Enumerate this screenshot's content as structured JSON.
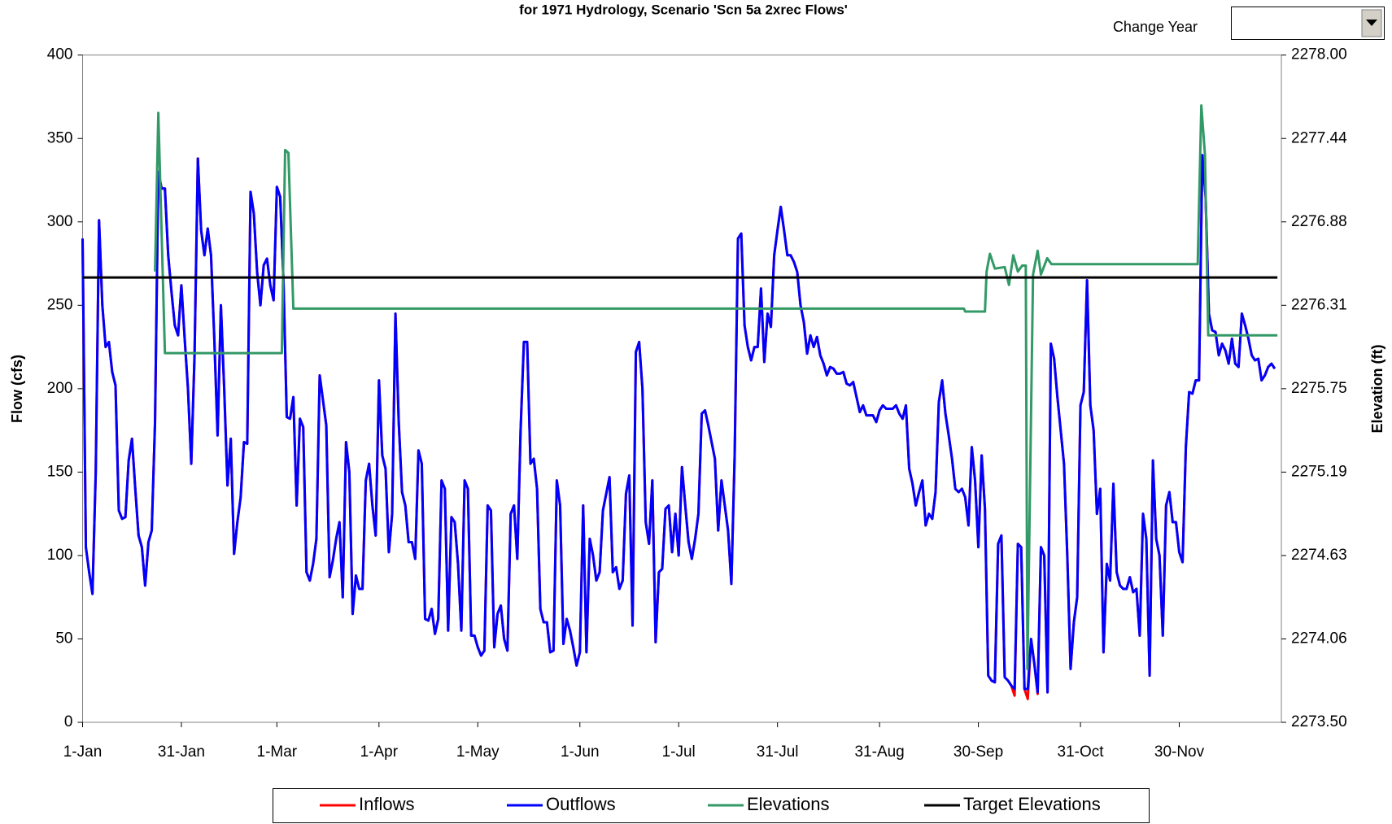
{
  "chart_data": {
    "type": "line",
    "title": "for 1971 Hydrology, Scenario 'Scn 5a 2xrec Flows'",
    "change_year_label": "Change Year",
    "ylabel": "Flow (cfs)",
    "y2label": "Elevation (ft)",
    "xlim": [
      0,
      364
    ],
    "xticks": [
      {
        "value": 0,
        "label": "1-Jan"
      },
      {
        "value": 30,
        "label": "31-Jan"
      },
      {
        "value": 59,
        "label": "1-Mar"
      },
      {
        "value": 90,
        "label": "1-Apr"
      },
      {
        "value": 120,
        "label": "1-May"
      },
      {
        "value": 151,
        "label": "1-Jun"
      },
      {
        "value": 181,
        "label": "1-Jul"
      },
      {
        "value": 211,
        "label": "31-Jul"
      },
      {
        "value": 242,
        "label": "31-Aug"
      },
      {
        "value": 272,
        "label": "30-Sep"
      },
      {
        "value": 303,
        "label": "31-Oct"
      },
      {
        "value": 333,
        "label": "30-Nov"
      }
    ],
    "ylim": [
      0,
      400
    ],
    "yticks": [
      0,
      50,
      100,
      150,
      200,
      250,
      300,
      350,
      400
    ],
    "y2lim": [
      2273.5,
      2278
    ],
    "y2ticks": [
      {
        "value": 2273.5,
        "label": "2273.50"
      },
      {
        "value": 2274.0625,
        "label": "2274.06"
      },
      {
        "value": 2274.625,
        "label": "2274.63"
      },
      {
        "value": 2275.1875,
        "label": "2275.19"
      },
      {
        "value": 2275.75,
        "label": "2275.75"
      },
      {
        "value": 2276.3125,
        "label": "2276.31"
      },
      {
        "value": 2276.875,
        "label": "2276.88"
      },
      {
        "value": 2277.4375,
        "label": "2277.44"
      },
      {
        "value": 2278,
        "label": "2278.00"
      }
    ],
    "legend": "bottom",
    "x": [
      0,
      1,
      2,
      3,
      4,
      5,
      6,
      7,
      8,
      9,
      10,
      11,
      12,
      13,
      14,
      15,
      16,
      17,
      18,
      19,
      20,
      21,
      22,
      23,
      24,
      25,
      26,
      27,
      28,
      29,
      30,
      31,
      32,
      33,
      34,
      35,
      36,
      37,
      38,
      39,
      40,
      41,
      42,
      43,
      44,
      45,
      46,
      47,
      48,
      49,
      50,
      51,
      52,
      53,
      54,
      55,
      56,
      57,
      58,
      59,
      60,
      61,
      62,
      63,
      64,
      65,
      66,
      67,
      68,
      69,
      70,
      71,
      72,
      73,
      74,
      75,
      76,
      77,
      78,
      79,
      80,
      81,
      82,
      83,
      84,
      85,
      86,
      87,
      88,
      89,
      90,
      91,
      92,
      93,
      94,
      95,
      96,
      97,
      98,
      99,
      100,
      101,
      102,
      103,
      104,
      105,
      106,
      107,
      108,
      109,
      110,
      111,
      112,
      113,
      114,
      115,
      116,
      117,
      118,
      119,
      120,
      121,
      122,
      123,
      124,
      125,
      126,
      127,
      128,
      129,
      130,
      131,
      132,
      133,
      134,
      135,
      136,
      137,
      138,
      139,
      140,
      141,
      142,
      143,
      144,
      145,
      146,
      147,
      148,
      149,
      150,
      151,
      152,
      153,
      154,
      155,
      156,
      157,
      158,
      159,
      160,
      161,
      162,
      163,
      164,
      165,
      166,
      167,
      168,
      169,
      170,
      171,
      172,
      173,
      174,
      175,
      176,
      177,
      178,
      179,
      180,
      181,
      182,
      183,
      184,
      185,
      186,
      187,
      188,
      189,
      190,
      191,
      192,
      193,
      194,
      195,
      196,
      197,
      198,
      199,
      200,
      201,
      202,
      203,
      204,
      205,
      206,
      207,
      208,
      209,
      210,
      211,
      212,
      213,
      214,
      215,
      216,
      217,
      218,
      219,
      220,
      221,
      222,
      223,
      224,
      225,
      226,
      227,
      228,
      229,
      230,
      231,
      232,
      233,
      234,
      235,
      236,
      237,
      238,
      239,
      240,
      241,
      242,
      243,
      244,
      245,
      246,
      247,
      248,
      249,
      250,
      251,
      252,
      253,
      254,
      255,
      256,
      257,
      258,
      259,
      260,
      261,
      262,
      263,
      264,
      265,
      266,
      267,
      268,
      269,
      270,
      271,
      272,
      273,
      274,
      275,
      276,
      277,
      278,
      279,
      280,
      281,
      282,
      283,
      284,
      285,
      286,
      287,
      288,
      289,
      290,
      291,
      292,
      293,
      294,
      295,
      296,
      297,
      298,
      299,
      300,
      301,
      302,
      303,
      304,
      305,
      306,
      307,
      308,
      309,
      310,
      311,
      312,
      313,
      314,
      315,
      316,
      317,
      318,
      319,
      320,
      321,
      322,
      323,
      324,
      325,
      326,
      327,
      328,
      329,
      330,
      331,
      332,
      333,
      334,
      335,
      336,
      337,
      338,
      339,
      340,
      341,
      342,
      343,
      344,
      345,
      346,
      347,
      348,
      349,
      350,
      351,
      352,
      353,
      354,
      355,
      356,
      357,
      358,
      359,
      360,
      361,
      362
    ],
    "series": [
      {
        "name": "Inflows",
        "color": "#ff0000",
        "values": [
          290,
          105,
          90,
          77,
          150,
          301,
          250,
          225,
          228,
          210,
          202,
          127,
          122,
          123,
          157,
          170,
          140,
          112,
          105,
          82,
          108,
          115,
          180,
          330,
          320,
          320,
          280,
          258,
          238,
          232,
          262,
          230,
          200,
          155,
          220,
          338,
          295,
          280,
          296,
          280,
          230,
          172,
          250,
          200,
          142,
          170,
          101,
          120,
          135,
          168,
          167,
          318,
          305,
          270,
          250,
          274,
          278,
          262,
          253,
          321,
          315,
          265,
          183,
          182,
          195,
          130,
          182,
          177,
          90,
          85,
          95,
          110,
          208,
          193,
          178,
          87,
          97,
          110,
          120,
          75,
          168,
          150,
          65,
          88,
          80,
          80,
          145,
          155,
          130,
          112,
          205,
          160,
          152,
          102,
          125,
          245,
          180,
          138,
          130,
          108,
          108,
          98,
          163,
          155,
          62,
          61,
          68,
          53,
          62,
          145,
          140,
          55,
          123,
          120,
          95,
          55,
          145,
          140,
          52,
          52,
          45,
          40,
          43,
          130,
          127,
          45,
          65,
          70,
          50,
          43,
          125,
          130,
          98,
          175,
          228,
          228,
          155,
          158,
          140,
          68,
          60,
          60,
          42,
          43,
          145,
          130,
          47,
          62,
          55,
          45,
          34,
          42,
          130,
          42,
          110,
          100,
          85,
          90,
          127,
          137,
          147,
          90,
          93,
          80,
          85,
          137,
          148,
          58,
          222,
          228,
          200,
          120,
          107,
          145,
          48,
          90,
          92,
          128,
          130,
          102,
          125,
          100,
          153,
          130,
          108,
          98,
          110,
          125,
          185,
          187,
          178,
          168,
          158,
          115,
          145,
          130,
          115,
          83,
          160,
          290,
          293,
          238,
          225,
          217,
          225,
          225,
          260,
          216,
          245,
          237,
          280,
          295,
          309,
          295,
          280,
          280,
          276,
          270,
          250,
          240,
          221,
          232,
          225,
          231,
          220,
          215,
          208,
          213,
          212,
          209,
          209,
          210,
          203,
          202,
          204,
          195,
          186,
          190,
          184,
          184,
          184,
          180,
          187,
          190,
          188,
          188,
          188,
          190,
          185,
          182,
          190,
          152,
          143,
          130,
          138,
          145,
          118,
          125,
          122,
          138,
          192,
          205,
          185,
          172,
          158,
          140,
          138,
          140,
          135,
          118,
          165,
          145,
          105,
          160,
          128,
          28,
          25,
          24,
          107,
          112,
          27,
          25,
          22,
          16,
          107,
          105,
          20,
          14,
          50,
          35,
          17,
          105,
          100,
          18,
          227,
          218,
          195,
          175,
          155,
          100,
          32,
          60,
          75,
          190,
          198,
          265,
          190,
          175,
          125,
          140,
          42,
          95,
          85,
          143,
          90,
          82,
          80,
          80,
          87,
          78,
          80,
          52,
          125,
          110,
          28,
          157,
          110,
          100,
          52,
          130,
          138,
          120,
          120,
          102,
          96,
          165,
          198,
          197,
          205,
          205,
          340,
          315,
          245,
          235,
          234,
          220,
          227,
          223,
          215,
          230,
          215,
          213,
          245,
          238,
          230,
          220,
          217,
          218,
          205,
          208,
          213,
          215,
          212
        ]
      },
      {
        "name": "Outflows",
        "color": "#0000ff",
        "values": [
          290,
          105,
          90,
          77,
          150,
          301,
          250,
          225,
          228,
          210,
          202,
          127,
          122,
          123,
          157,
          170,
          140,
          112,
          105,
          82,
          108,
          115,
          180,
          330,
          320,
          320,
          280,
          258,
          238,
          232,
          262,
          230,
          200,
          155,
          220,
          338,
          295,
          280,
          296,
          280,
          230,
          172,
          250,
          200,
          142,
          170,
          101,
          120,
          135,
          168,
          167,
          318,
          305,
          270,
          250,
          274,
          278,
          262,
          253,
          321,
          315,
          265,
          183,
          182,
          195,
          130,
          182,
          177,
          90,
          85,
          95,
          110,
          208,
          193,
          178,
          87,
          97,
          110,
          120,
          75,
          168,
          150,
          65,
          88,
          80,
          80,
          145,
          155,
          130,
          112,
          205,
          160,
          152,
          102,
          125,
          245,
          180,
          138,
          130,
          108,
          108,
          98,
          163,
          155,
          62,
          61,
          68,
          53,
          62,
          145,
          140,
          55,
          123,
          120,
          95,
          55,
          145,
          140,
          52,
          52,
          45,
          40,
          43,
          130,
          127,
          45,
          65,
          70,
          50,
          43,
          125,
          130,
          98,
          175,
          228,
          228,
          155,
          158,
          140,
          68,
          60,
          60,
          42,
          43,
          145,
          130,
          47,
          62,
          55,
          45,
          34,
          42,
          130,
          42,
          110,
          100,
          85,
          90,
          127,
          137,
          147,
          90,
          93,
          80,
          85,
          137,
          148,
          58,
          222,
          228,
          200,
          120,
          107,
          145,
          48,
          90,
          92,
          128,
          130,
          102,
          125,
          100,
          153,
          130,
          108,
          98,
          110,
          125,
          185,
          187,
          178,
          168,
          158,
          115,
          145,
          130,
          115,
          83,
          160,
          290,
          293,
          238,
          225,
          217,
          225,
          225,
          260,
          216,
          245,
          237,
          280,
          295,
          309,
          295,
          280,
          280,
          276,
          270,
          250,
          240,
          221,
          232,
          225,
          231,
          220,
          215,
          208,
          213,
          212,
          209,
          209,
          210,
          203,
          202,
          204,
          195,
          186,
          190,
          184,
          184,
          184,
          180,
          187,
          190,
          188,
          188,
          188,
          190,
          185,
          182,
          190,
          152,
          143,
          130,
          138,
          145,
          118,
          125,
          122,
          138,
          192,
          205,
          185,
          172,
          158,
          140,
          138,
          140,
          135,
          118,
          165,
          145,
          105,
          160,
          128,
          28,
          25,
          24,
          107,
          112,
          27,
          25,
          22,
          20,
          107,
          105,
          20,
          20,
          50,
          35,
          18,
          105,
          100,
          18,
          227,
          218,
          195,
          175,
          155,
          100,
          32,
          60,
          75,
          190,
          198,
          265,
          190,
          175,
          125,
          140,
          42,
          95,
          85,
          143,
          90,
          82,
          80,
          80,
          87,
          78,
          80,
          52,
          125,
          110,
          28,
          157,
          110,
          100,
          52,
          130,
          138,
          120,
          120,
          102,
          96,
          165,
          198,
          197,
          205,
          205,
          340,
          315,
          245,
          235,
          234,
          220,
          227,
          223,
          215,
          230,
          215,
          213,
          245,
          238,
          230,
          220,
          217,
          218,
          205,
          208,
          213,
          215,
          212
        ]
      },
      {
        "name": "Elevations",
        "color": "#339966",
        "axis": "y2",
        "x": [
          22,
          23,
          25,
          60.5,
          61.5,
          62.5,
          64,
          267.6,
          268,
          274,
          274.5,
          275.5,
          277,
          280,
          281.3,
          282.6,
          284,
          285.3,
          286.4,
          286.9,
          288.6,
          290,
          291,
          292.9,
          294.2,
          338.6,
          339.7,
          340.8,
          341.8,
          362.8
        ],
        "values": [
          2276.54,
          2277.61,
          2275.99,
          2275.99,
          2277.36,
          2277.34,
          2276.29,
          2276.29,
          2276.27,
          2276.27,
          2276.54,
          2276.66,
          2276.56,
          2276.57,
          2276.45,
          2276.65,
          2276.54,
          2276.58,
          2276.58,
          2273.86,
          2276.52,
          2276.68,
          2276.52,
          2276.63,
          2276.59,
          2276.59,
          2277.66,
          2277.33,
          2276.11,
          2276.11
        ]
      },
      {
        "name": "Target Elevations",
        "color": "#000000",
        "axis": "y2",
        "x": [
          0,
          362.8
        ],
        "values": [
          2276.5,
          2276.5
        ]
      }
    ]
  }
}
